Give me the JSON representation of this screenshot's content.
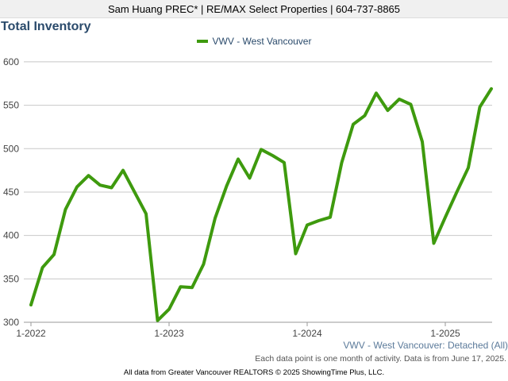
{
  "header": {
    "text": "Sam Huang PREC* | RE/MAX Select Properties | 604-737-8865"
  },
  "chart_data": {
    "type": "line",
    "title": "Total Inventory",
    "xlabel": "",
    "ylabel": "",
    "ylim": [
      300,
      620
    ],
    "yticks": [
      300,
      350,
      400,
      450,
      500,
      550,
      600
    ],
    "xticks": [
      "1-2022",
      "1-2023",
      "1-2024",
      "1-2025"
    ],
    "grid": true,
    "legend_position": "top-center",
    "series": [
      {
        "name": "VWV - West Vancouver",
        "color": "#3e9a0e",
        "x": [
          "2022-01",
          "2022-02",
          "2022-03",
          "2022-04",
          "2022-05",
          "2022-06",
          "2022-07",
          "2022-08",
          "2022-09",
          "2022-10",
          "2022-11",
          "2022-12",
          "2023-01",
          "2023-02",
          "2023-03",
          "2023-04",
          "2023-05",
          "2023-06",
          "2023-07",
          "2023-08",
          "2023-09",
          "2023-10",
          "2023-11",
          "2023-12",
          "2024-01",
          "2024-02",
          "2024-03",
          "2024-04",
          "2024-05",
          "2024-06",
          "2024-07",
          "2024-08",
          "2024-09",
          "2024-10",
          "2024-11",
          "2024-12",
          "2025-01",
          "2025-02",
          "2025-03",
          "2025-04",
          "2025-05"
        ],
        "values": [
          320,
          363,
          378,
          430,
          456,
          469,
          458,
          455,
          475,
          450,
          425,
          302,
          315,
          341,
          340,
          367,
          420,
          457,
          488,
          466,
          499,
          492,
          484,
          379,
          412,
          417,
          421,
          484,
          528,
          538,
          564,
          544,
          557,
          551,
          508,
          391,
          421,
          450,
          478,
          548,
          569
        ]
      }
    ]
  },
  "series_label": "VWV - West Vancouver: Detached (All)",
  "note": "Each data point is one month of activity. Data is from June 17, 2025.",
  "footer": "All data from Greater Vancouver REALTORS © 2025 ShowingTime Plus, LLC."
}
